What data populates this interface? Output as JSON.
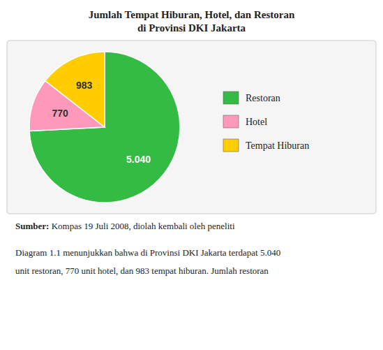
{
  "chart_data": {
    "type": "pie",
    "title": "Jumlah Tempat Hiburan, Hotel, dan Restoran",
    "subtitle": "di Provinsi DKI Jakarta",
    "categories": [
      "Restoran",
      "Hotel",
      "Tempat Hiburan"
    ],
    "values": [
      5040,
      770,
      983
    ],
    "value_labels": [
      "5.040",
      "770",
      "983"
    ],
    "colors": [
      "#33bb44",
      "#ff99bb",
      "#ffcc00"
    ],
    "data_labels": true,
    "legend": "right",
    "annotations": [
      "Sumber: Kompas 19 Juli 2008, diolah kembali oleh peneliti",
      "Diagram 1.1 menunjukkan bahwa di Provinsi DKI Jakarta terdapat 5.040",
      "unit restoran, 770 unit hotel, dan 983 tempat hiburan. Jumlah restoran"
    ]
  }
}
